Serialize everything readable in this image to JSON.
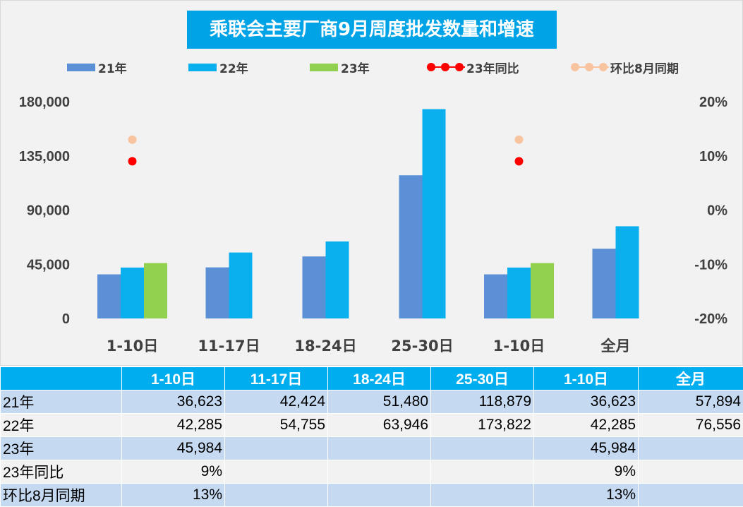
{
  "chart_data": {
    "type": "bar",
    "title": "乘联会主要厂商9月周度批发数量和增速",
    "categories": [
      "1-10日",
      "11-17日",
      "18-24日",
      "25-30日",
      "1-10日",
      "全月"
    ],
    "series": [
      {
        "name": "21年",
        "kind": "bar",
        "axis": "left",
        "color": "#5b8fd6",
        "values": [
          36623,
          42424,
          51480,
          118879,
          36623,
          57894
        ]
      },
      {
        "name": "22年",
        "kind": "bar",
        "axis": "left",
        "color": "#0ab0ee",
        "values": [
          42285,
          54755,
          63946,
          173822,
          42285,
          76556
        ]
      },
      {
        "name": "23年",
        "kind": "bar",
        "axis": "left",
        "color": "#92d050",
        "values": [
          45984,
          null,
          null,
          null,
          45984,
          null
        ]
      },
      {
        "name": "23年同比",
        "kind": "dot",
        "axis": "right",
        "color": "#ff0000",
        "values": [
          0.09,
          null,
          null,
          null,
          0.09,
          null
        ]
      },
      {
        "name": "环比8月同期",
        "kind": "dot",
        "axis": "right",
        "color": "#f8c4a0",
        "values": [
          0.13,
          null,
          null,
          null,
          0.13,
          null
        ]
      }
    ],
    "y_left": {
      "min": 0,
      "max": 180000,
      "ticks": [
        "0",
        "45,000",
        "90,000",
        "135,000",
        "180,000"
      ]
    },
    "y_right": {
      "min": -0.2,
      "max": 0.2,
      "ticks": [
        "-20%",
        "-10%",
        "0%",
        "10%",
        "20%"
      ]
    },
    "legend_position": "top",
    "grid": false
  },
  "table": {
    "headers": [
      "",
      "1-10日",
      "11-17日",
      "18-24日",
      "25-30日",
      "1-10日",
      "全月"
    ],
    "rows": [
      {
        "label": "21年",
        "cells": [
          "36,623",
          "42,424",
          "51,480",
          "118,879",
          "36,623",
          "57,894"
        ]
      },
      {
        "label": "22年",
        "cells": [
          "42,285",
          "54,755",
          "63,946",
          "173,822",
          "42,285",
          "76,556"
        ]
      },
      {
        "label": "23年",
        "cells": [
          "45,984",
          "",
          "",
          "",
          "45,984",
          ""
        ]
      },
      {
        "label": "23年同比",
        "cells": [
          "9%",
          "",
          "",
          "",
          "9%",
          ""
        ]
      },
      {
        "label": "环比8月同期",
        "cells": [
          "13%",
          "",
          "",
          "",
          "13%",
          ""
        ]
      }
    ]
  }
}
